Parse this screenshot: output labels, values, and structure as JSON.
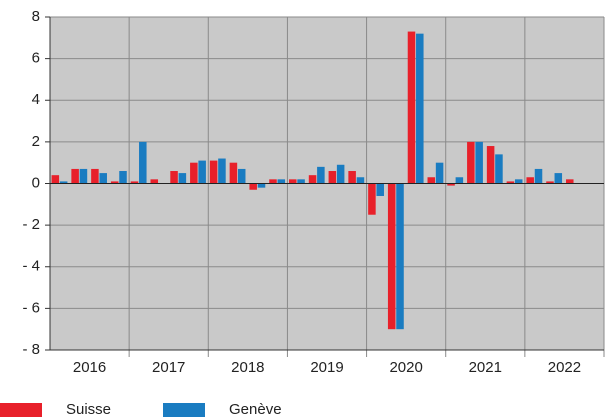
{
  "chart_data": {
    "type": "bar",
    "groups": [
      "2016",
      "2017",
      "2018",
      "2019",
      "2020",
      "2021",
      "2022"
    ],
    "categories": [
      null,
      null,
      null,
      null,
      null,
      null,
      null,
      null,
      null,
      null,
      null,
      null,
      null,
      null,
      null,
      null,
      null,
      null,
      null,
      null,
      null,
      null,
      null,
      null,
      null,
      null,
      null,
      null
    ],
    "series": [
      {
        "name": "Suisse",
        "color": "#e8202a",
        "values": [
          0.4,
          0.7,
          0.7,
          0.1,
          0.1,
          0.2,
          0.6,
          1.0,
          1.1,
          1.0,
          -0.3,
          0.2,
          0.2,
          0.4,
          0.6,
          0.6,
          -1.5,
          -7.0,
          7.3,
          0.3,
          -0.1,
          2.0,
          1.8,
          0.1,
          0.3,
          0.1,
          0.2,
          null
        ]
      },
      {
        "name": "Genève",
        "color": "#1a7cc1",
        "values": [
          0.1,
          0.7,
          0.5,
          0.6,
          2.0,
          0,
          0.5,
          1.1,
          1.2,
          0.7,
          -0.2,
          0.2,
          0.2,
          0.8,
          0.9,
          0.3,
          -0.6,
          -7.0,
          7.2,
          1.0,
          0.3,
          2.0,
          1.4,
          0.2,
          0.7,
          0.5,
          null,
          null
        ]
      }
    ],
    "ylim": [
      -8,
      8
    ],
    "yticks": [
      {
        "value": -8,
        "label": "- 8"
      },
      {
        "value": -6,
        "label": "- 6"
      },
      {
        "value": -4,
        "label": "- 4"
      },
      {
        "value": -2,
        "label": "- 2"
      },
      0,
      2,
      4,
      6,
      8
    ],
    "grid": true
  }
}
